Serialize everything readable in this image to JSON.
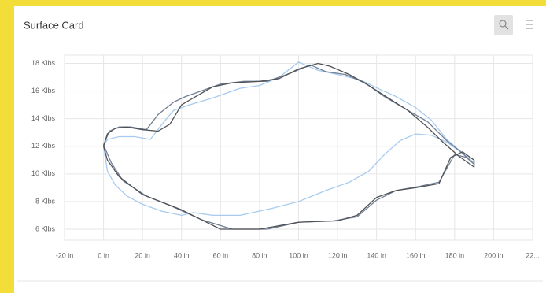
{
  "header": {
    "title": "Surface Card"
  },
  "chart_data": {
    "type": "line",
    "xlim": [
      -20,
      220
    ],
    "xticks": [
      {
        "value": -20,
        "label": "-20 in"
      },
      {
        "value": 0,
        "label": "0 in"
      },
      {
        "value": 20,
        "label": "20 in"
      },
      {
        "value": 40,
        "label": "40 in"
      },
      {
        "value": 60,
        "label": "60 in"
      },
      {
        "value": 80,
        "label": "80 in"
      },
      {
        "value": 100,
        "label": "100 in"
      },
      {
        "value": 120,
        "label": "120 in"
      },
      {
        "value": 140,
        "label": "140 in"
      },
      {
        "value": 160,
        "label": "160 in"
      },
      {
        "value": 180,
        "label": "180 in"
      },
      {
        "value": 200,
        "label": "200 in"
      },
      {
        "value": 220,
        "label": "22..."
      }
    ],
    "ylim": [
      5.2,
      18.6
    ],
    "yticks": [
      {
        "value": 6,
        "label": "6 Klbs"
      },
      {
        "value": 8,
        "label": "8 Klbs"
      },
      {
        "value": 10,
        "label": "10 Klbs"
      },
      {
        "value": 12,
        "label": "12 Klbs"
      },
      {
        "value": 14,
        "label": "14 Klbs"
      },
      {
        "value": 16,
        "label": "16 Klbs"
      },
      {
        "value": 18,
        "label": "18 Klbs"
      }
    ],
    "grid": true,
    "series": [
      {
        "color": "#a7cbee",
        "x": [
          0,
          2,
          8,
          16,
          24,
          30,
          36,
          44,
          56,
          70,
          80,
          90,
          100,
          110,
          120,
          132,
          142,
          150,
          160,
          168,
          176,
          184,
          190,
          184,
          176,
          168,
          160,
          152,
          144,
          136,
          126,
          114,
          100,
          86,
          70,
          56,
          46,
          40,
          30,
          20,
          12,
          6,
          2,
          0
        ],
        "values": [
          12.0,
          12.5,
          12.7,
          12.7,
          12.5,
          13.6,
          14.6,
          15.0,
          15.5,
          16.2,
          16.4,
          17.0,
          18.1,
          17.5,
          17.2,
          16.8,
          16.1,
          15.6,
          14.8,
          13.9,
          12.5,
          11.5,
          10.8,
          11.5,
          12.3,
          12.8,
          12.9,
          12.4,
          11.4,
          10.2,
          9.4,
          8.8,
          8.0,
          7.5,
          7.0,
          7.0,
          7.2,
          7.0,
          7.3,
          7.8,
          8.4,
          9.2,
          10.2,
          12.0
        ]
      },
      {
        "color": "#6f7e93",
        "x": [
          0,
          3,
          8,
          14,
          22,
          28,
          36,
          42,
          50,
          60,
          72,
          84,
          96,
          106,
          114,
          124,
          134,
          144,
          156,
          166,
          176,
          184,
          190,
          186,
          180,
          172,
          162,
          150,
          140,
          130,
          118,
          100,
          84,
          66,
          50,
          36,
          22,
          10,
          4,
          0
        ],
        "values": [
          12.1,
          13.1,
          13.4,
          13.4,
          13.2,
          14.3,
          15.2,
          15.6,
          16.0,
          16.5,
          16.7,
          16.7,
          17.3,
          17.9,
          17.4,
          17.2,
          16.6,
          15.6,
          14.6,
          13.8,
          12.4,
          11.5,
          10.7,
          11.2,
          11.4,
          9.4,
          9.1,
          8.8,
          8.1,
          6.9,
          6.6,
          6.5,
          6.0,
          6.0,
          6.7,
          7.6,
          8.4,
          9.5,
          10.8,
          12.1
        ]
      },
      {
        "color": "#4f5257",
        "x": [
          0,
          2,
          6,
          12,
          20,
          28,
          34,
          40,
          46,
          56,
          66,
          80,
          90,
          100,
          110,
          116,
          126,
          136,
          146,
          156,
          166,
          174,
          182,
          190,
          190,
          184,
          178,
          172,
          160,
          150,
          140,
          130,
          120,
          100,
          80,
          60,
          40,
          20,
          8,
          2,
          0
        ],
        "values": [
          12.0,
          12.9,
          13.3,
          13.4,
          13.2,
          13.1,
          13.6,
          15.0,
          15.5,
          16.3,
          16.6,
          16.7,
          16.9,
          17.6,
          18.0,
          17.8,
          17.2,
          16.4,
          15.5,
          14.6,
          13.4,
          12.3,
          11.3,
          10.5,
          11.0,
          11.6,
          11.2,
          9.3,
          9.0,
          8.8,
          8.3,
          7.0,
          6.6,
          6.5,
          6.0,
          6.0,
          7.4,
          8.5,
          9.8,
          11.0,
          12.0
        ]
      }
    ]
  }
}
